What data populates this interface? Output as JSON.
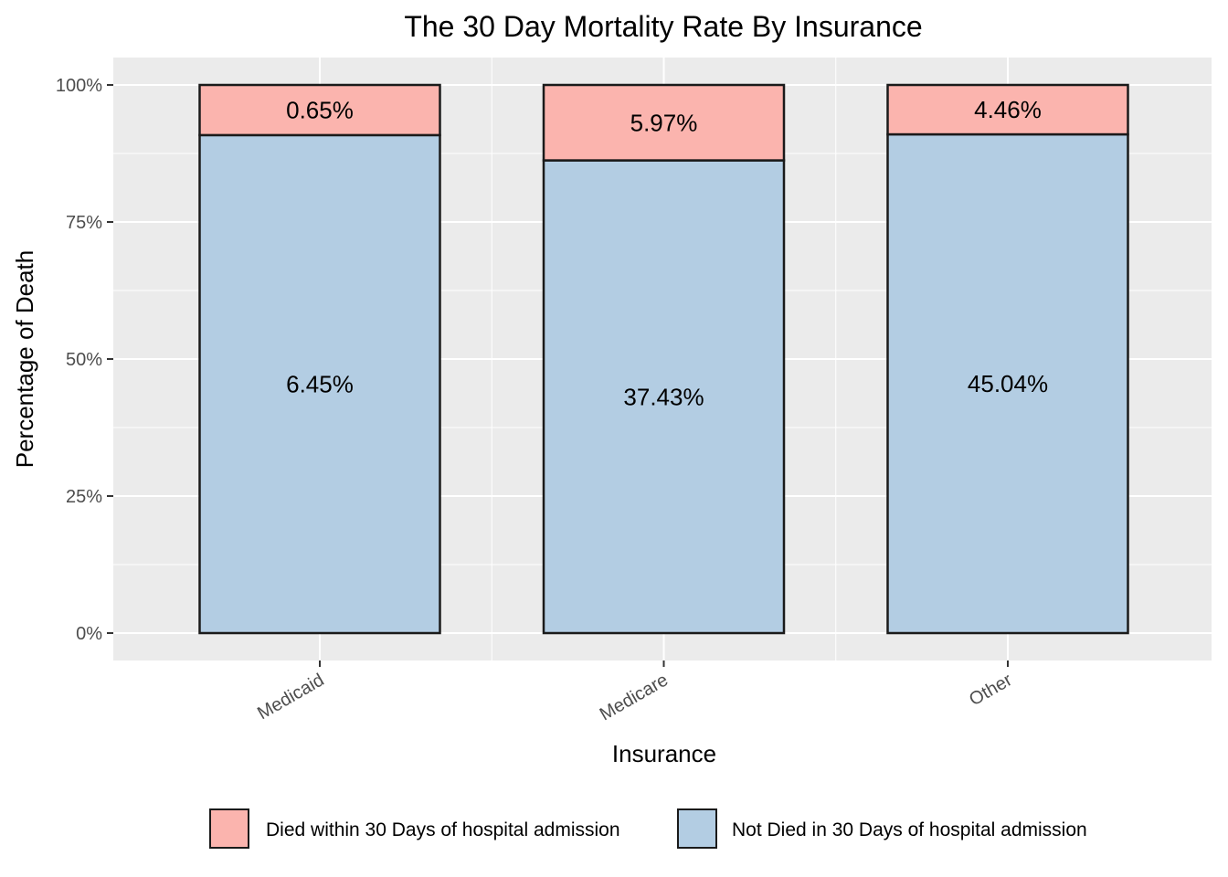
{
  "chart_data": {
    "type": "bar",
    "stacked": true,
    "normalized": true,
    "title": "The 30 Day Mortality Rate By Insurance",
    "xlabel": "Insurance",
    "ylabel": "Percentage of Death",
    "categories": [
      "Medicaid",
      "Medicare",
      "Other"
    ],
    "ylim": [
      0,
      100
    ],
    "yticks": [
      0,
      25,
      50,
      75,
      100
    ],
    "ytick_labels": [
      "0%",
      "25%",
      "50%",
      "75%",
      "100%"
    ],
    "grid": true,
    "legend_position": "bottom",
    "series": [
      {
        "name": "Not Died in 30 Days of hospital admission",
        "color": "#b3cde3",
        "values": [
          90.85,
          86.24,
          90.99
        ],
        "labels": [
          "6.45%",
          "37.43%",
          "45.04%"
        ]
      },
      {
        "name": "Died within 30 Days of hospital admission",
        "color": "#fbb4ae",
        "values": [
          9.15,
          13.76,
          9.01
        ],
        "labels": [
          "0.65%",
          "5.97%",
          "4.46%"
        ]
      }
    ],
    "legend": [
      {
        "label": "Died within 30 Days of hospital admission",
        "color": "#fbb4ae"
      },
      {
        "label": "Not Died in 30 Days of hospital admission",
        "color": "#b3cde3"
      }
    ],
    "panel_color": "#ebebeb",
    "grid_color": "#ffffff",
    "bar_outline_color": "#1a1a1a"
  }
}
